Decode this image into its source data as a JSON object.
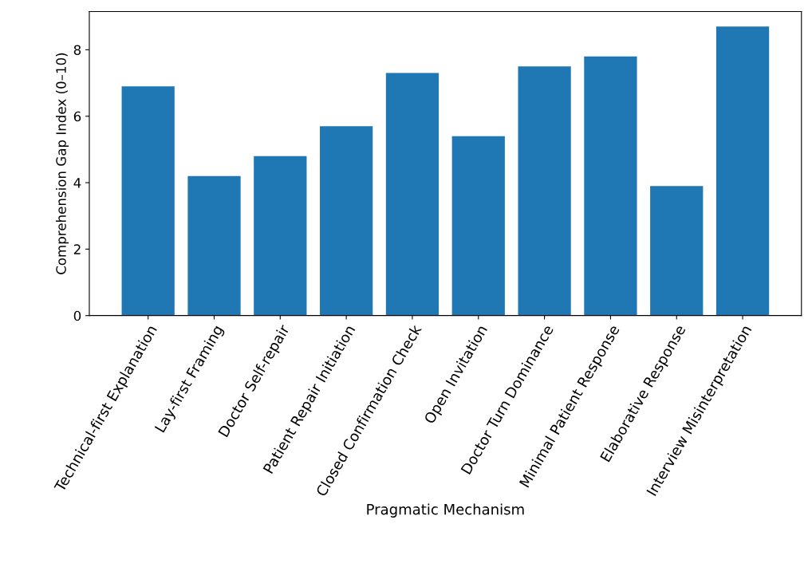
{
  "chart_data": {
    "type": "bar",
    "xlabel": "Pragmatic Mechanism",
    "ylabel": "Comprehension Gap Index (0–10)",
    "categories": [
      "Technical-first Explanation",
      "Lay-first Framing",
      "Doctor Self-repair",
      "Patient Repair Initiation",
      "Closed Confirmation Check",
      "Open Invitation",
      "Doctor Turn Dominance",
      "Minimal Patient Response",
      "Elaborative Response",
      "Interview Misinterpretation"
    ],
    "values": [
      6.9,
      4.2,
      4.8,
      5.7,
      7.3,
      5.4,
      7.5,
      7.8,
      3.9,
      8.7
    ],
    "color": "#1f77b4",
    "ylim": [
      0,
      9.15
    ],
    "yticks": [
      0,
      2,
      4,
      6,
      8
    ],
    "grid": false,
    "legend": false
  }
}
